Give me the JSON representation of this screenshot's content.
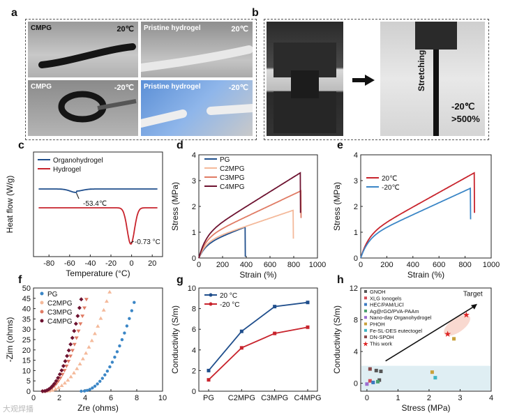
{
  "panel_letters": {
    "a": "a",
    "b": "b",
    "c": "c",
    "d": "d",
    "e": "e",
    "f": "f",
    "g": "g",
    "h": "h"
  },
  "panel_a": {
    "tl_label": "CMPG",
    "tl_temp": "20℃",
    "tr_label": "Pristine hydrogel",
    "tr_temp": "20℃",
    "bl_label": "CMPG",
    "bl_temp": "-20℃",
    "br_label": "Pristine hydrogel",
    "br_temp": "-20℃"
  },
  "panel_b": {
    "stretching": "Stretching",
    "temp": "-20℃",
    "pct": ">500%"
  },
  "watermark": "大观焊播",
  "colors": {
    "blue": "#1f4e8c",
    "red": "#c8232c",
    "lightblue": "#3b86c6",
    "peach": "#f4b99a",
    "salmon": "#e07b64",
    "maroon": "#6d1230",
    "darkred": "#b5282f"
  },
  "chart_data": [
    {
      "id": "c",
      "type": "line",
      "title": "",
      "xlabel": "Temperature (°C)",
      "ylabel": "Heat flow (W/g)",
      "xlim": [
        -95,
        30
      ],
      "xticks": [
        "-80",
        "-60",
        "-40",
        "-20",
        "0",
        "20"
      ],
      "series": [
        {
          "name": "Organohydrogel",
          "baseline": 1.0,
          "dip_x": -53.4
        },
        {
          "name": "Hydrogel",
          "baseline": 0.0,
          "dip_x": -0.73
        }
      ],
      "annotations": [
        "-53.4℃",
        "-0.73 °C"
      ]
    },
    {
      "id": "d",
      "type": "line",
      "xlabel": "Strain (%)",
      "ylabel": "Stress (MPa)",
      "xlim": [
        0,
        1000
      ],
      "ylim": [
        0,
        4
      ],
      "xticks": [
        "0",
        "200",
        "400",
        "600",
        "800",
        "1000"
      ],
      "yticks": [
        "0",
        "1",
        "2",
        "3",
        "4"
      ],
      "legend": [
        "PG",
        "C2MPG",
        "C3MPG",
        "C4MPG"
      ],
      "series": [
        {
          "name": "PG",
          "break_strain": 390,
          "max_stress": 1.2,
          "end_stress": 0.05
        },
        {
          "name": "C2MPG",
          "break_strain": 795,
          "max_stress": 1.85,
          "end_stress": 0.75
        },
        {
          "name": "C3MPG",
          "break_strain": 860,
          "max_stress": 2.6,
          "end_stress": 1.55
        },
        {
          "name": "C4MPG",
          "break_strain": 855,
          "max_stress": 3.3,
          "end_stress": 1.75
        }
      ]
    },
    {
      "id": "e",
      "type": "line",
      "xlabel": "Strain (%)",
      "ylabel": "Stress (MPa)",
      "xlim": [
        0,
        1000
      ],
      "ylim": [
        0,
        4
      ],
      "xticks": [
        "0",
        "200",
        "400",
        "600",
        "800",
        "1000"
      ],
      "yticks": [
        "0",
        "1",
        "2",
        "3",
        "4"
      ],
      "legend": [
        "20℃",
        "-20℃"
      ],
      "series": [
        {
          "name": "20℃",
          "break_strain": 870,
          "max_stress": 3.3,
          "end_stress": 1.75
        },
        {
          "name": "-20℃",
          "break_strain": 840,
          "max_stress": 2.7,
          "end_stress": 1.5
        }
      ]
    },
    {
      "id": "f",
      "type": "scatter",
      "xlabel": "Zre (ohms)",
      "ylabel": "-Zim (ohms)",
      "xlim": [
        0,
        10
      ],
      "ylim": [
        0,
        50
      ],
      "xticks": [
        "0",
        "2",
        "4",
        "6",
        "8",
        "10"
      ],
      "yticks": [
        "0",
        "5",
        "10",
        "15",
        "20",
        "25",
        "30",
        "35",
        "40",
        "45",
        "50"
      ],
      "legend": [
        "PG",
        "C2MPG",
        "C3MPG",
        "C4MPG"
      ],
      "series": [
        {
          "name": "PG",
          "x0": 3.7,
          "x1": 7.8,
          "y1": 43
        },
        {
          "name": "C2MPG",
          "x0": 0.9,
          "x1": 5.9,
          "y1": 48
        },
        {
          "name": "C3MPG",
          "x0": 0.75,
          "x1": 4.1,
          "y1": 44.5
        },
        {
          "name": "C4MPG",
          "x0": 0.7,
          "x1": 3.7,
          "y1": 44.5
        }
      ]
    },
    {
      "id": "g",
      "type": "line",
      "xlabel": "",
      "ylabel": "Conductivity (S/m)",
      "ylim": [
        0,
        10
      ],
      "yticks": [
        "0",
        "2",
        "4",
        "6",
        "8",
        "10"
      ],
      "categories": [
        "PG",
        "C2MPG",
        "C3MPG",
        "C4MPG"
      ],
      "legend": [
        "20 °C",
        "-20 °C"
      ],
      "series": [
        {
          "name": "20 °C",
          "values": [
            2.0,
            5.8,
            8.2,
            8.6
          ]
        },
        {
          "name": "-20 °C",
          "values": [
            1.1,
            4.2,
            5.6,
            6.2
          ]
        }
      ]
    },
    {
      "id": "h",
      "type": "scatter",
      "xlabel": "Stress (MPa)",
      "ylabel": "Conductivity (S/m)",
      "xlim": [
        -0.2,
        4
      ],
      "ylim": [
        -1,
        12
      ],
      "xticks": [
        "0",
        "1",
        "2",
        "3",
        "4"
      ],
      "yticks": [
        "0",
        "4",
        "8",
        "12"
      ],
      "arrow_label": "Target",
      "legend": [
        "GNOH",
        "XLG Ionogels",
        "HEC/PAM/LiCl",
        "Ag@rGO/PVA-PAAm",
        "Nano-day Organohydrogel",
        "PHOH",
        "Fe-SL-DES eutectogel",
        "DN-SPOH",
        "This work"
      ],
      "points": [
        {
          "name": "GNOH",
          "x": 0.3,
          "y": 1.6
        },
        {
          "name": "GNOH",
          "x": 0.45,
          "y": 1.5
        },
        {
          "name": "GNOH",
          "x": 0.4,
          "y": 0.4
        },
        {
          "name": "XLG Ionogels",
          "x": 0.1,
          "y": 0.3
        },
        {
          "name": "HEC/PAM/LiCl",
          "x": 0.2,
          "y": 0.1
        },
        {
          "name": "Ag@rGO/PVA-PAAm",
          "x": 0.35,
          "y": 0.2
        },
        {
          "name": "Nano-day Organohydrogel",
          "x": 0.0,
          "y": -0.1
        },
        {
          "name": "PHOH",
          "x": 2.8,
          "y": 5.6
        },
        {
          "name": "PHOH",
          "x": 2.1,
          "y": 1.4
        },
        {
          "name": "Fe-SL-DES eutectogel",
          "x": 2.2,
          "y": 0.7
        },
        {
          "name": "DN-SPOH",
          "x": 0.1,
          "y": 1.8
        },
        {
          "name": "This work",
          "x": 2.6,
          "y": 6.2
        },
        {
          "name": "This work",
          "x": 3.2,
          "y": 8.6
        }
      ]
    }
  ]
}
